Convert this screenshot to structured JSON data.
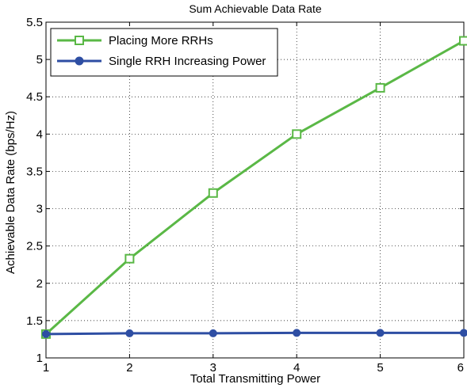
{
  "colors": {
    "series_green": "#5ab846",
    "series_blue": "#2e4ea3"
  },
  "chart_data": {
    "type": "line",
    "title": "Sum Achievable Data Rate",
    "xlabel": "Total Transmitting Power",
    "ylabel": "Achievable Data Rate (bps/Hz)",
    "xlim": [
      1,
      6
    ],
    "ylim": [
      1,
      5.5
    ],
    "x_ticks": [
      1,
      2,
      3,
      4,
      5,
      6
    ],
    "y_ticks": [
      1,
      1.5,
      2,
      2.5,
      3,
      3.5,
      4,
      4.5,
      5,
      5.5
    ],
    "grid": true,
    "legend_position": "top-left",
    "x": [
      1,
      2,
      3,
      4,
      5,
      6
    ],
    "series": [
      {
        "name": "Placing More RRHs",
        "values": [
          1.32,
          2.33,
          3.21,
          4.0,
          4.62,
          5.25
        ],
        "marker": "square",
        "color": "#5ab846"
      },
      {
        "name": "Single RRH Increasing Power",
        "values": [
          1.32,
          1.33,
          1.33,
          1.335,
          1.335,
          1.335
        ],
        "marker": "circle",
        "color": "#2e4ea3"
      }
    ]
  }
}
